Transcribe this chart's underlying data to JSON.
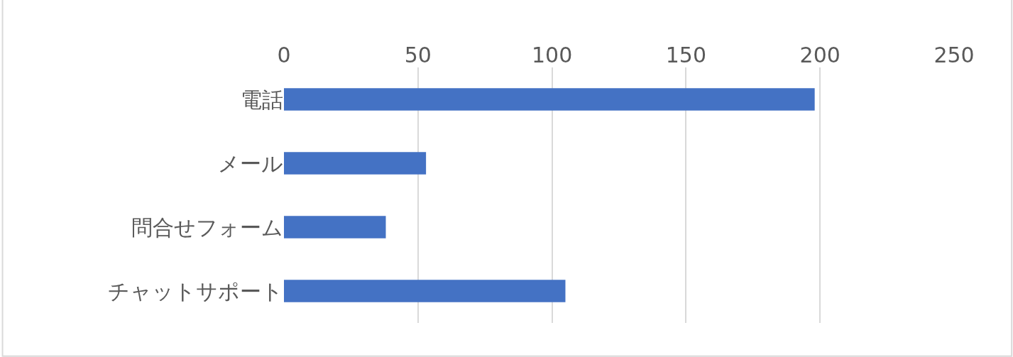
{
  "chart_data": {
    "type": "bar",
    "orientation": "horizontal",
    "categories": [
      "電話",
      "メール",
      "問合せフォーム",
      "チャットサポート"
    ],
    "values": [
      198,
      53,
      38,
      105
    ],
    "color": "#4472c4",
    "xlim": [
      0,
      250
    ],
    "xticks": [
      0,
      50,
      100,
      150,
      200,
      250
    ],
    "grid": "x",
    "legend": false
  }
}
